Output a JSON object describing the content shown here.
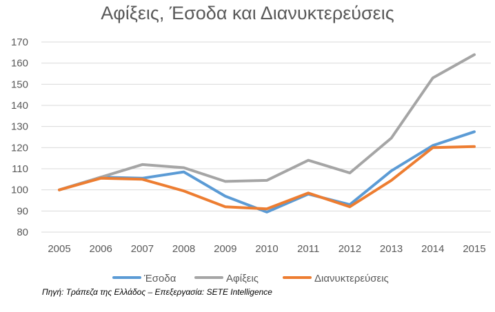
{
  "chart_data": {
    "type": "line",
    "title": "Αφίξεις, Έσοδα και Διανυκτερεύσεις",
    "xlabel": "",
    "ylabel": "",
    "categories": [
      "2005",
      "2006",
      "2007",
      "2008",
      "2009",
      "2010",
      "2011",
      "2012",
      "2013",
      "2014",
      "2015"
    ],
    "yticks": [
      "80",
      "90",
      "100",
      "110",
      "120",
      "130",
      "140",
      "150",
      "160",
      "170"
    ],
    "ylim": [
      80,
      170
    ],
    "grid": true,
    "legend_position": "bottom",
    "series": [
      {
        "name": "Έσοδα",
        "color": "#5B9BD5",
        "values": [
          100,
          106,
          105.5,
          108.5,
          97,
          89.5,
          98,
          93,
          109,
          121,
          127.5
        ]
      },
      {
        "name": "Αφίξεις",
        "color": "#A5A5A5",
        "values": [
          100,
          106,
          112,
          110.5,
          104,
          104.5,
          114,
          108,
          124.5,
          153,
          164
        ]
      },
      {
        "name": "Διανυκτερεύσεις",
        "color": "#ED7D31",
        "values": [
          100,
          105.5,
          105,
          99.5,
          92,
          91,
          98.5,
          92,
          104.5,
          120,
          120.5
        ]
      }
    ],
    "source": "Πηγή: Τράπεζα της Ελλάδος – Επεξεργασία: SETE Intelligence"
  }
}
